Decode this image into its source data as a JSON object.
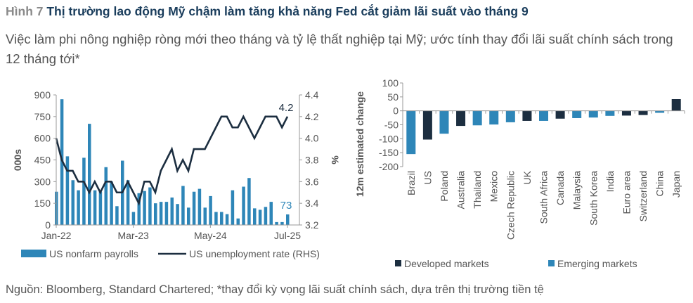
{
  "title": {
    "figure": "Hình 7",
    "text": "Thị trường lao động Mỹ chậm làm tăng khả năng Fed cắt giảm lãi suất vào tháng 9"
  },
  "subtitle": "Việc làm phi nông nghiệp ròng mới theo tháng và tỷ lệ thất nghiệp tại Mỹ; ước tính thay đổi lãi suất chính sách trong 12 tháng tới*",
  "footer": "Nguồn: Bloomberg, Standard Chartered; *thay đổi kỳ vọng lãi suất chính sách, dựa trên thị trường tiền tệ",
  "chart_data": [
    {
      "type": "bar+line",
      "ylabel": "000s",
      "y2label": "%",
      "ylim": [
        0,
        900
      ],
      "y2lim": [
        3.2,
        4.4
      ],
      "yticks": [
        "0",
        "150",
        "300",
        "450",
        "600",
        "750",
        "900"
      ],
      "y2ticks": [
        "3.2",
        "3.4",
        "3.6",
        "3.8",
        "4.0",
        "4.2",
        "4.4"
      ],
      "xticks": [
        "Jan-22",
        "Mar-23",
        "May-24",
        "Jul-25"
      ],
      "series": [
        {
          "name": "US nonfarm payrolls",
          "type": "bar",
          "color": "#2e86b8",
          "values": [
            230,
            870,
            475,
            310,
            240,
            465,
            700,
            240,
            230,
            400,
            300,
            130,
            445,
            310,
            90,
            220,
            235,
            260,
            150,
            160,
            160,
            190,
            145,
            270,
            120,
            230,
            250,
            120,
            200,
            90,
            90,
            75,
            240,
            45,
            265,
            325,
            115,
            105,
            125,
            160,
            20,
            20,
            73
          ],
          "last_label": "73"
        },
        {
          "name": "US unemployment rate (RHS)",
          "type": "line",
          "color": "#1c2e40",
          "values": [
            4.0,
            3.8,
            3.7,
            3.7,
            3.6,
            3.6,
            3.5,
            3.6,
            3.5,
            3.6,
            3.6,
            3.5,
            3.5,
            3.6,
            3.5,
            3.4,
            3.6,
            3.6,
            3.5,
            3.7,
            3.8,
            3.9,
            3.7,
            3.8,
            3.7,
            3.9,
            3.9,
            3.9,
            4.0,
            4.1,
            4.2,
            4.2,
            4.1,
            4.1,
            4.2,
            4.1,
            4.0,
            4.1,
            4.2,
            4.2,
            4.2,
            4.1,
            4.2
          ],
          "last_label": "4.2"
        }
      ]
    },
    {
      "type": "bar",
      "ylabel": "12m estimated change",
      "ylim": [
        -200,
        100
      ],
      "yticks": [
        "100",
        "50",
        "0",
        "-50",
        "-100",
        "-150",
        "-200"
      ],
      "categories": [
        "Brazil",
        "US",
        "Poland",
        "Australia",
        "Thailand",
        "Mexico",
        "Czech Republic",
        "UK",
        "South Africa",
        "Canada",
        "Malaysia",
        "South Korea",
        "India",
        "Euro area",
        "Switzerland",
        "China",
        "Japan"
      ],
      "values": [
        -155,
        -103,
        -82,
        -54,
        -52,
        -49,
        -41,
        -36,
        -36,
        -28,
        -26,
        -24,
        -18,
        -17,
        -15,
        -7,
        42
      ],
      "groups": [
        "Emerging markets",
        "Developed markets",
        "Emerging markets",
        "Developed markets",
        "Emerging markets",
        "Emerging markets",
        "Emerging markets",
        "Developed markets",
        "Emerging markets",
        "Developed markets",
        "Emerging markets",
        "Emerging markets",
        "Emerging markets",
        "Developed markets",
        "Developed markets",
        "Emerging markets",
        "Developed markets"
      ],
      "legend": [
        {
          "name": "Developed markets",
          "color": "#1c2e40"
        },
        {
          "name": "Emerging markets",
          "color": "#2e86b8"
        }
      ]
    }
  ]
}
